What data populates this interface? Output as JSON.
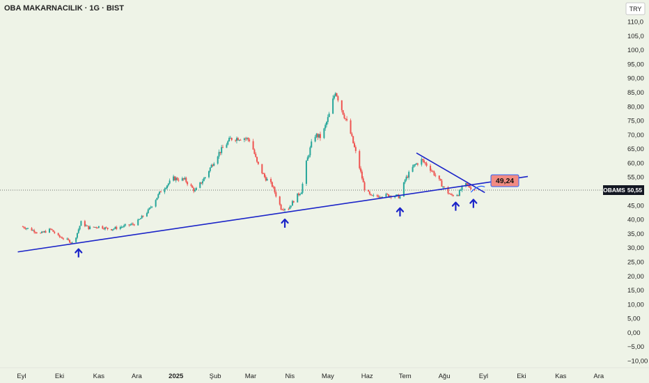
{
  "header": {
    "title": "OBA MAKARNACILIK · 1G · BIST"
  },
  "currency_button": {
    "label": "TRY"
  },
  "last_price": {
    "symbol": "OBAMS",
    "value": "50,55"
  },
  "annotation": {
    "label": "49,24",
    "fill": "#f28b82",
    "border": "#2962ff"
  },
  "colors": {
    "up": "#26a69a",
    "down": "#ef5350",
    "trendline": "#1a23c8",
    "arrow": "#1a23c8",
    "background": "#eef3e7"
  },
  "chart_data": {
    "type": "candlestick",
    "title": "OBA MAKARNACILIK · 1G · BIST",
    "ylim": [
      -10,
      110
    ],
    "y_ticks": [
      "110,0",
      "105,0",
      "100,0",
      "95,00",
      "90,00",
      "85,00",
      "80,00",
      "75,00",
      "70,00",
      "65,00",
      "60,00",
      "55,00",
      "50,00",
      "45,00",
      "40,00",
      "35,00",
      "30,00",
      "25,00",
      "20,00",
      "15,00",
      "10,00",
      "5,00",
      "0,00",
      "−5,00",
      "−10,00"
    ],
    "x_ticks": [
      {
        "label": "Eyl",
        "bold": false
      },
      {
        "label": "Eki",
        "bold": false
      },
      {
        "label": "Kas",
        "bold": false
      },
      {
        "label": "Ara",
        "bold": false
      },
      {
        "label": "2025",
        "bold": true
      },
      {
        "label": "Şub",
        "bold": false
      },
      {
        "label": "Mar",
        "bold": false
      },
      {
        "label": "Nis",
        "bold": false
      },
      {
        "label": "May",
        "bold": false
      },
      {
        "label": "Haz",
        "bold": false
      },
      {
        "label": "Tem",
        "bold": false
      },
      {
        "label": "Ağu",
        "bold": false
      },
      {
        "label": "Eyl",
        "bold": false
      },
      {
        "label": "Eki",
        "bold": false
      },
      {
        "label": "Kas",
        "bold": false
      },
      {
        "label": "Ara",
        "bold": false
      }
    ],
    "price_path": [
      [
        "2024-09-01",
        37.5
      ],
      [
        "2024-09-08",
        36.5
      ],
      [
        "2024-09-16",
        35
      ],
      [
        "2024-09-24",
        36.5
      ],
      [
        "2024-09-30",
        34
      ],
      [
        "2024-10-06",
        33
      ],
      [
        "2024-10-12",
        31.5
      ],
      [
        "2024-10-18",
        39
      ],
      [
        "2024-10-24",
        37
      ],
      [
        "2024-11-01",
        37.5
      ],
      [
        "2024-11-10",
        36.5
      ],
      [
        "2024-11-20",
        37.5
      ],
      [
        "2024-11-30",
        38.5
      ],
      [
        "2024-12-10",
        43
      ],
      [
        "2024-12-20",
        50
      ],
      [
        "2024-12-30",
        54.5
      ],
      [
        "2025-01-08",
        54
      ],
      [
        "2025-01-16",
        50
      ],
      [
        "2025-01-24",
        55
      ],
      [
        "2025-02-03",
        63
      ],
      [
        "2025-02-13",
        68.5
      ],
      [
        "2025-02-23",
        69
      ],
      [
        "2025-03-01",
        68
      ],
      [
        "2025-03-06",
        60
      ],
      [
        "2025-03-12",
        55
      ],
      [
        "2025-03-18",
        52
      ],
      [
        "2025-03-25",
        44
      ],
      [
        "2025-03-31",
        44
      ],
      [
        "2025-04-06",
        48
      ],
      [
        "2025-04-10",
        50
      ],
      [
        "2025-04-14",
        60
      ],
      [
        "2025-04-20",
        70
      ],
      [
        "2025-04-26",
        69
      ],
      [
        "2025-05-02",
        77
      ],
      [
        "2025-05-07",
        85.5
      ],
      [
        "2025-05-12",
        79
      ],
      [
        "2025-05-18",
        72
      ],
      [
        "2025-05-24",
        62
      ],
      [
        "2025-05-30",
        51
      ],
      [
        "2025-06-04",
        48
      ],
      [
        "2025-06-12",
        48.5
      ],
      [
        "2025-06-20",
        48.5
      ],
      [
        "2025-06-27",
        48
      ],
      [
        "2025-07-01",
        54
      ],
      [
        "2025-07-08",
        59
      ],
      [
        "2025-07-14",
        61
      ],
      [
        "2025-07-20",
        58.5
      ],
      [
        "2025-07-26",
        55
      ],
      [
        "2025-08-01",
        51
      ],
      [
        "2025-08-06",
        48.5
      ],
      [
        "2025-08-12",
        49
      ],
      [
        "2025-08-17",
        52.5
      ],
      [
        "2025-08-21",
        51.5
      ],
      [
        "2025-08-25",
        50.5
      ]
    ],
    "trendlines": [
      {
        "name": "support",
        "points": [
          [
            "2024-08-29",
            28.5
          ],
          [
            "2025-10-06",
            55.2
          ]
        ]
      },
      {
        "name": "resistance",
        "points": [
          [
            "2025-07-10",
            63.5
          ],
          [
            "2025-09-02",
            49.5
          ]
        ]
      }
    ],
    "support_touches": [
      [
        "2024-10-16",
        31
      ],
      [
        "2025-03-28",
        41.5
      ],
      [
        "2025-06-27",
        45.5
      ],
      [
        "2025-08-10",
        47.5
      ],
      [
        "2025-08-24",
        48.5
      ]
    ],
    "last_price": 50.55,
    "label": 49.24
  }
}
